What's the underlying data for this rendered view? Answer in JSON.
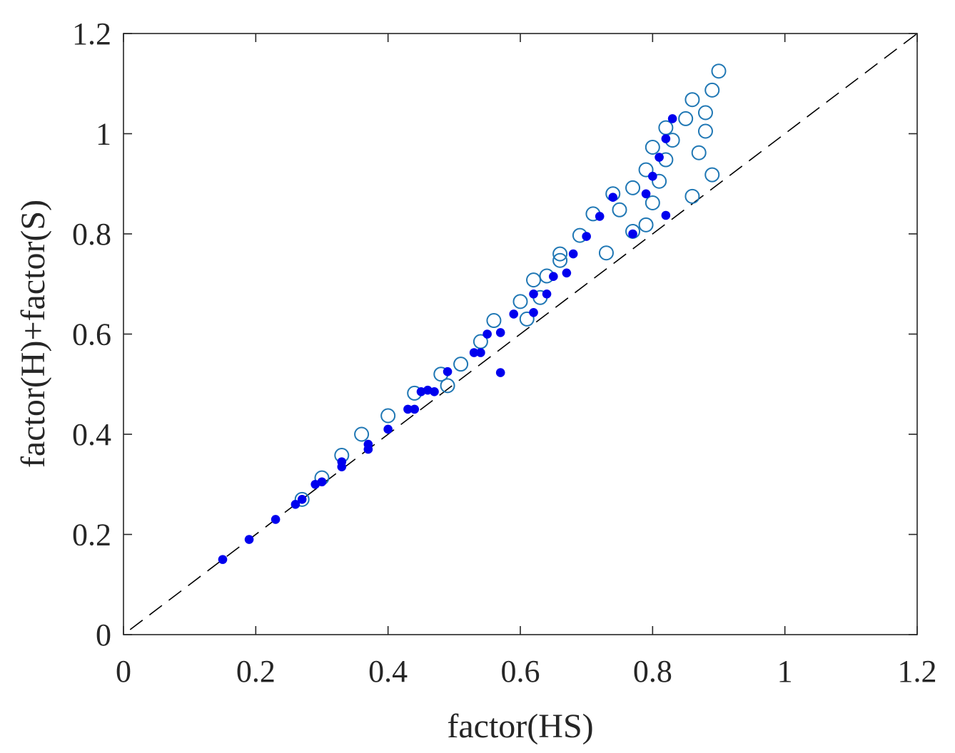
{
  "chart_data": {
    "type": "scatter",
    "title": "",
    "xlabel": "factor(HS)",
    "ylabel": "factor(H)+factor(S)",
    "xlim": [
      0,
      1.2
    ],
    "ylim": [
      0,
      1.2
    ],
    "xticks": [
      "0",
      "0.2",
      "0.4",
      "0.6",
      "0.8",
      "1",
      "1.2"
    ],
    "yticks": [
      "0",
      "0.2",
      "0.4",
      "0.6",
      "0.8",
      "1",
      "1.2"
    ],
    "grid": false,
    "reference_line": {
      "name": "y = x",
      "style": "dashed",
      "color": "#000000"
    },
    "series": [
      {
        "name": "filled",
        "marker": "filled-circle",
        "color": "#0000ee",
        "points": [
          [
            0.15,
            0.15
          ],
          [
            0.19,
            0.19
          ],
          [
            0.23,
            0.23
          ],
          [
            0.26,
            0.26
          ],
          [
            0.27,
            0.27
          ],
          [
            0.29,
            0.3
          ],
          [
            0.3,
            0.305
          ],
          [
            0.33,
            0.335
          ],
          [
            0.33,
            0.345
          ],
          [
            0.37,
            0.37
          ],
          [
            0.37,
            0.38
          ],
          [
            0.4,
            0.41
          ],
          [
            0.43,
            0.45
          ],
          [
            0.44,
            0.45
          ],
          [
            0.45,
            0.485
          ],
          [
            0.46,
            0.488
          ],
          [
            0.47,
            0.485
          ],
          [
            0.49,
            0.525
          ],
          [
            0.53,
            0.563
          ],
          [
            0.54,
            0.563
          ],
          [
            0.55,
            0.6
          ],
          [
            0.57,
            0.603
          ],
          [
            0.57,
            0.523
          ],
          [
            0.59,
            0.64
          ],
          [
            0.62,
            0.643
          ],
          [
            0.62,
            0.68
          ],
          [
            0.64,
            0.68
          ],
          [
            0.65,
            0.715
          ],
          [
            0.67,
            0.722
          ],
          [
            0.68,
            0.76
          ],
          [
            0.7,
            0.795
          ],
          [
            0.72,
            0.835
          ],
          [
            0.74,
            0.873
          ],
          [
            0.77,
            0.8
          ],
          [
            0.79,
            0.88
          ],
          [
            0.8,
            0.915
          ],
          [
            0.81,
            0.953
          ],
          [
            0.82,
            0.99
          ],
          [
            0.82,
            0.837
          ],
          [
            0.83,
            1.03
          ]
        ]
      },
      {
        "name": "open",
        "marker": "open-circle",
        "color": "#1f77b4",
        "points": [
          [
            0.27,
            0.27
          ],
          [
            0.3,
            0.313
          ],
          [
            0.33,
            0.358
          ],
          [
            0.36,
            0.4
          ],
          [
            0.4,
            0.437
          ],
          [
            0.44,
            0.482
          ],
          [
            0.48,
            0.52
          ],
          [
            0.49,
            0.497
          ],
          [
            0.51,
            0.54
          ],
          [
            0.54,
            0.585
          ],
          [
            0.56,
            0.627
          ],
          [
            0.6,
            0.665
          ],
          [
            0.61,
            0.63
          ],
          [
            0.62,
            0.708
          ],
          [
            0.63,
            0.673
          ],
          [
            0.64,
            0.716
          ],
          [
            0.66,
            0.76
          ],
          [
            0.66,
            0.747
          ],
          [
            0.69,
            0.797
          ],
          [
            0.71,
            0.84
          ],
          [
            0.73,
            0.762
          ],
          [
            0.74,
            0.88
          ],
          [
            0.75,
            0.848
          ],
          [
            0.77,
            0.892
          ],
          [
            0.77,
            0.805
          ],
          [
            0.79,
            0.928
          ],
          [
            0.79,
            0.818
          ],
          [
            0.8,
            0.973
          ],
          [
            0.8,
            0.862
          ],
          [
            0.81,
            0.905
          ],
          [
            0.82,
            1.012
          ],
          [
            0.82,
            0.948
          ],
          [
            0.83,
            0.987
          ],
          [
            0.85,
            1.03
          ],
          [
            0.86,
            1.068
          ],
          [
            0.86,
            0.875
          ],
          [
            0.87,
            0.962
          ],
          [
            0.88,
            1.005
          ],
          [
            0.88,
            1.042
          ],
          [
            0.89,
            1.087
          ],
          [
            0.89,
            0.918
          ],
          [
            0.9,
            1.125
          ]
        ]
      }
    ]
  }
}
